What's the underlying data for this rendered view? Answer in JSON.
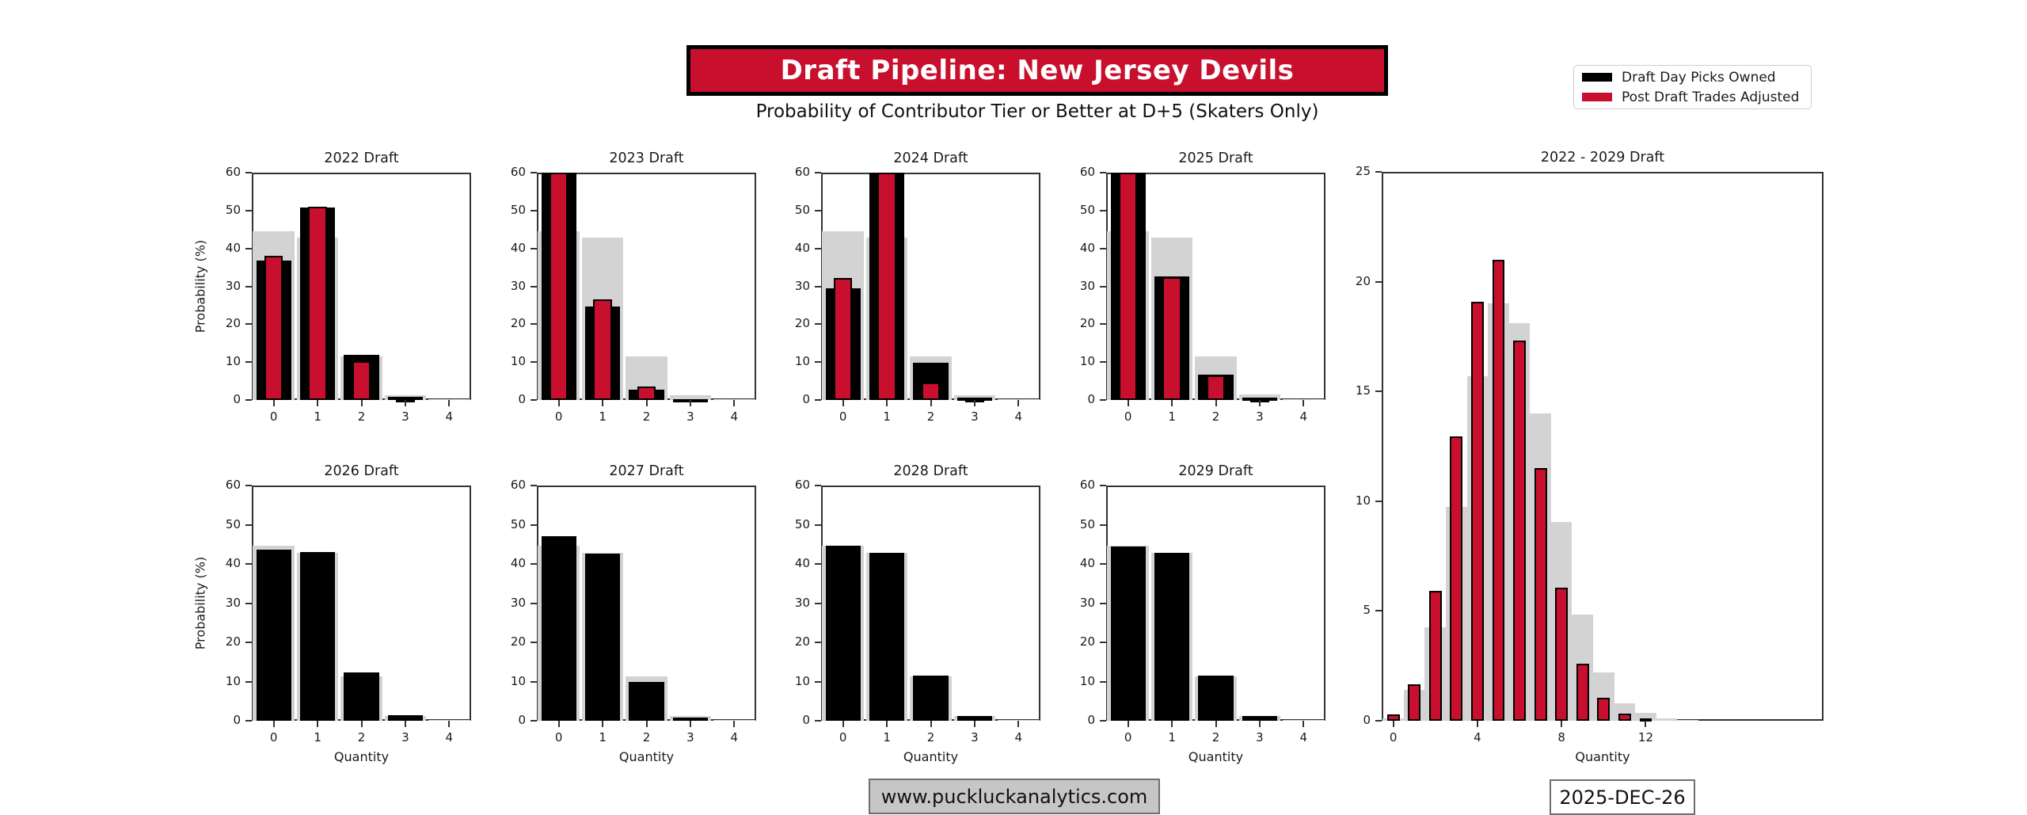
{
  "header": {
    "title": "Draft Pipeline: New Jersey Devils",
    "subtitle": "Probability of Contributor Tier or Better at D+5 (Skaters Only)",
    "title_bg_color": "#C8102E",
    "title_text_color": "#FFFFFF"
  },
  "legend": {
    "position": "top-right",
    "entries": [
      {
        "label": "Draft Day Picks Owned",
        "color": "#000000"
      },
      {
        "label": "Post Draft Trades Adjusted",
        "color": "#C8102E"
      }
    ]
  },
  "footer": {
    "website": "www.puckluckanalytics.com",
    "date": "2025-DEC-26"
  },
  "chart_data": [
    {
      "id": "draft-2022",
      "type": "bar",
      "title": "2022 Draft",
      "xlabel": "",
      "ylabel": "Probability (%)",
      "categories": [
        0,
        1,
        2,
        3,
        4
      ],
      "xticks": [
        0,
        1,
        2,
        3,
        4
      ],
      "yticks": [
        0,
        10,
        20,
        30,
        40,
        50,
        60
      ],
      "ylim": [
        0,
        60
      ],
      "xlim": [
        -0.5,
        4.5
      ],
      "series": [
        {
          "name": "Baseline (unlabeled gray)",
          "color": "#D3D3D3",
          "bar_width": 0.95,
          "edge": false,
          "values": [
            44.6,
            42.8,
            11.4,
            1.2,
            0.1
          ]
        },
        {
          "name": "Draft Day Picks Owned",
          "color": "#000000",
          "bar_width": 0.8,
          "edge": true,
          "values": [
            36.7,
            50.8,
            12.0,
            0.8,
            0
          ]
        },
        {
          "name": "Post Draft Trades Adjusted",
          "color": "#C8102E",
          "bar_width": 0.42,
          "edge": true,
          "values": [
            38.0,
            51.0,
            10.2,
            0.3,
            0
          ]
        }
      ]
    },
    {
      "id": "draft-2023",
      "type": "bar",
      "title": "2023 Draft",
      "xlabel": "",
      "ylabel": "",
      "categories": [
        0,
        1,
        2,
        3,
        4
      ],
      "xticks": [
        0,
        1,
        2,
        3,
        4
      ],
      "yticks": [
        0,
        10,
        20,
        30,
        40,
        50,
        60
      ],
      "ylim": [
        0,
        60
      ],
      "xlim": [
        -0.5,
        4.5
      ],
      "note": "bars at 60 are clipped by the axis top",
      "series": [
        {
          "name": "Baseline (unlabeled gray)",
          "color": "#D3D3D3",
          "bar_width": 0.95,
          "edge": false,
          "values": [
            44.6,
            42.8,
            11.4,
            1.2,
            0.1
          ]
        },
        {
          "name": "Draft Day Picks Owned",
          "color": "#000000",
          "bar_width": 0.8,
          "edge": true,
          "values": [
            60,
            24.7,
            2.7,
            0.3,
            0
          ]
        },
        {
          "name": "Post Draft Trades Adjusted",
          "color": "#C8102E",
          "bar_width": 0.42,
          "edge": true,
          "values": [
            60,
            26.5,
            3.5,
            0.15,
            0
          ]
        }
      ]
    },
    {
      "id": "draft-2024",
      "type": "bar",
      "title": "2024 Draft",
      "xlabel": "",
      "ylabel": "",
      "categories": [
        0,
        1,
        2,
        3,
        4
      ],
      "xticks": [
        0,
        1,
        2,
        3,
        4
      ],
      "yticks": [
        0,
        10,
        20,
        30,
        40,
        50,
        60
      ],
      "ylim": [
        0,
        60
      ],
      "xlim": [
        -0.5,
        4.5
      ],
      "note": "bars at 60 are clipped by the axis top",
      "series": [
        {
          "name": "Baseline (unlabeled gray)",
          "color": "#D3D3D3",
          "bar_width": 0.95,
          "edge": false,
          "values": [
            44.6,
            42.8,
            11.4,
            1.2,
            0.1
          ]
        },
        {
          "name": "Draft Day Picks Owned",
          "color": "#000000",
          "bar_width": 0.8,
          "edge": true,
          "values": [
            29.4,
            60,
            9.9,
            0.6,
            0
          ]
        },
        {
          "name": "Post Draft Trades Adjusted",
          "color": "#C8102E",
          "bar_width": 0.42,
          "edge": true,
          "values": [
            32.1,
            60,
            4.6,
            0.2,
            0
          ]
        }
      ]
    },
    {
      "id": "draft-2025",
      "type": "bar",
      "title": "2025 Draft",
      "xlabel": "",
      "ylabel": "",
      "categories": [
        0,
        1,
        2,
        3,
        4
      ],
      "xticks": [
        0,
        1,
        2,
        3,
        4
      ],
      "yticks": [
        0,
        10,
        20,
        30,
        40,
        50,
        60
      ],
      "ylim": [
        0,
        60
      ],
      "xlim": [
        -0.5,
        4.5
      ],
      "note": "bars at 60 are clipped by the axis top",
      "series": [
        {
          "name": "Baseline (unlabeled gray)",
          "color": "#D3D3D3",
          "bar_width": 0.95,
          "edge": false,
          "values": [
            44.6,
            42.8,
            11.4,
            1.4,
            0.1
          ]
        },
        {
          "name": "Draft Day Picks Owned",
          "color": "#000000",
          "bar_width": 0.8,
          "edge": true,
          "values": [
            60,
            32.6,
            6.7,
            0.7,
            0
          ]
        },
        {
          "name": "Post Draft Trades Adjusted",
          "color": "#C8102E",
          "bar_width": 0.42,
          "edge": true,
          "values": [
            60,
            32.3,
            6.4,
            0.3,
            0
          ]
        }
      ]
    },
    {
      "id": "draft-2026",
      "type": "bar",
      "title": "2026 Draft",
      "xlabel": "Quantity",
      "ylabel": "Probability (%)",
      "categories": [
        0,
        1,
        2,
        3,
        4
      ],
      "xticks": [
        0,
        1,
        2,
        3,
        4
      ],
      "yticks": [
        0,
        10,
        20,
        30,
        40,
        50,
        60
      ],
      "ylim": [
        0,
        60
      ],
      "xlim": [
        -0.5,
        4.5
      ],
      "series": [
        {
          "name": "Baseline (unlabeled gray)",
          "color": "#D3D3D3",
          "bar_width": 0.95,
          "edge": false,
          "values": [
            44.6,
            42.8,
            11.4,
            1.3,
            0.1
          ]
        },
        {
          "name": "Draft Day Picks Owned",
          "color": "#000000",
          "bar_width": 0.8,
          "edge": true,
          "values": [
            43.6,
            43.0,
            12.3,
            1.5,
            0
          ]
        }
      ]
    },
    {
      "id": "draft-2027",
      "type": "bar",
      "title": "2027 Draft",
      "xlabel": "Quantity",
      "ylabel": "",
      "categories": [
        0,
        1,
        2,
        3,
        4
      ],
      "xticks": [
        0,
        1,
        2,
        3,
        4
      ],
      "yticks": [
        0,
        10,
        20,
        30,
        40,
        50,
        60
      ],
      "ylim": [
        0,
        60
      ],
      "xlim": [
        -0.5,
        4.5
      ],
      "series": [
        {
          "name": "Baseline (unlabeled gray)",
          "color": "#D3D3D3",
          "bar_width": 0.95,
          "edge": false,
          "values": [
            44.6,
            42.8,
            11.4,
            1.2,
            0.1
          ]
        },
        {
          "name": "Draft Day Picks Owned",
          "color": "#000000",
          "bar_width": 0.8,
          "edge": true,
          "values": [
            47.0,
            42.7,
            9.8,
            0.9,
            0
          ]
        }
      ]
    },
    {
      "id": "draft-2028",
      "type": "bar",
      "title": "2028 Draft",
      "xlabel": "Quantity",
      "ylabel": "",
      "categories": [
        0,
        1,
        2,
        3,
        4
      ],
      "xticks": [
        0,
        1,
        2,
        3,
        4
      ],
      "yticks": [
        0,
        10,
        20,
        30,
        40,
        50,
        60
      ],
      "ylim": [
        0,
        60
      ],
      "xlim": [
        -0.5,
        4.5
      ],
      "series": [
        {
          "name": "Baseline (unlabeled gray)",
          "color": "#D3D3D3",
          "bar_width": 0.95,
          "edge": false,
          "values": [
            44.6,
            42.8,
            11.4,
            1.2,
            0.1
          ]
        },
        {
          "name": "Draft Day Picks Owned",
          "color": "#000000",
          "bar_width": 0.8,
          "edge": true,
          "values": [
            44.7,
            42.9,
            11.5,
            1.3,
            0
          ]
        }
      ]
    },
    {
      "id": "draft-2029",
      "type": "bar",
      "title": "2029 Draft",
      "xlabel": "Quantity",
      "ylabel": "",
      "categories": [
        0,
        1,
        2,
        3,
        4
      ],
      "xticks": [
        0,
        1,
        2,
        3,
        4
      ],
      "yticks": [
        0,
        10,
        20,
        30,
        40,
        50,
        60
      ],
      "ylim": [
        0,
        60
      ],
      "xlim": [
        -0.5,
        4.5
      ],
      "series": [
        {
          "name": "Baseline (unlabeled gray)",
          "color": "#D3D3D3",
          "bar_width": 0.95,
          "edge": false,
          "values": [
            44.6,
            42.8,
            11.4,
            1.2,
            0.1
          ]
        },
        {
          "name": "Draft Day Picks Owned",
          "color": "#000000",
          "bar_width": 0.8,
          "edge": true,
          "values": [
            44.5,
            42.8,
            11.5,
            1.2,
            0
          ]
        }
      ]
    },
    {
      "id": "draft-2022-2029-combined",
      "type": "bar",
      "title": "2022 - 2029 Draft",
      "xlabel": "Quantity",
      "ylabel": "",
      "categories": [
        0,
        1,
        2,
        3,
        4,
        5,
        6,
        7,
        8,
        9,
        10,
        11,
        12,
        13,
        14
      ],
      "xticks": [
        0,
        4,
        8,
        12
      ],
      "yticks": [
        0,
        5,
        10,
        15,
        20,
        25
      ],
      "ylim": [
        0,
        25
      ],
      "xlim": [
        -0.55,
        20.45
      ],
      "series": [
        {
          "name": "Baseline (unlabeled gray)",
          "color": "#D3D3D3",
          "bar_width": 1.0,
          "edge": false,
          "values": [
            0.1,
            1.4,
            4.25,
            9.75,
            15.7,
            19.0,
            18.1,
            14.0,
            9.05,
            4.85,
            2.2,
            0.8,
            0.35,
            0.12,
            0.05
          ]
        },
        {
          "name": "Post Draft Trades Adjusted",
          "color": "#C8102E",
          "bar_width": 0.6,
          "edge": true,
          "values": [
            0.3,
            1.65,
            5.9,
            12.95,
            19.1,
            21.0,
            17.3,
            11.5,
            6.05,
            2.6,
            1.05,
            0.33,
            0.1,
            0,
            0
          ]
        }
      ]
    }
  ]
}
